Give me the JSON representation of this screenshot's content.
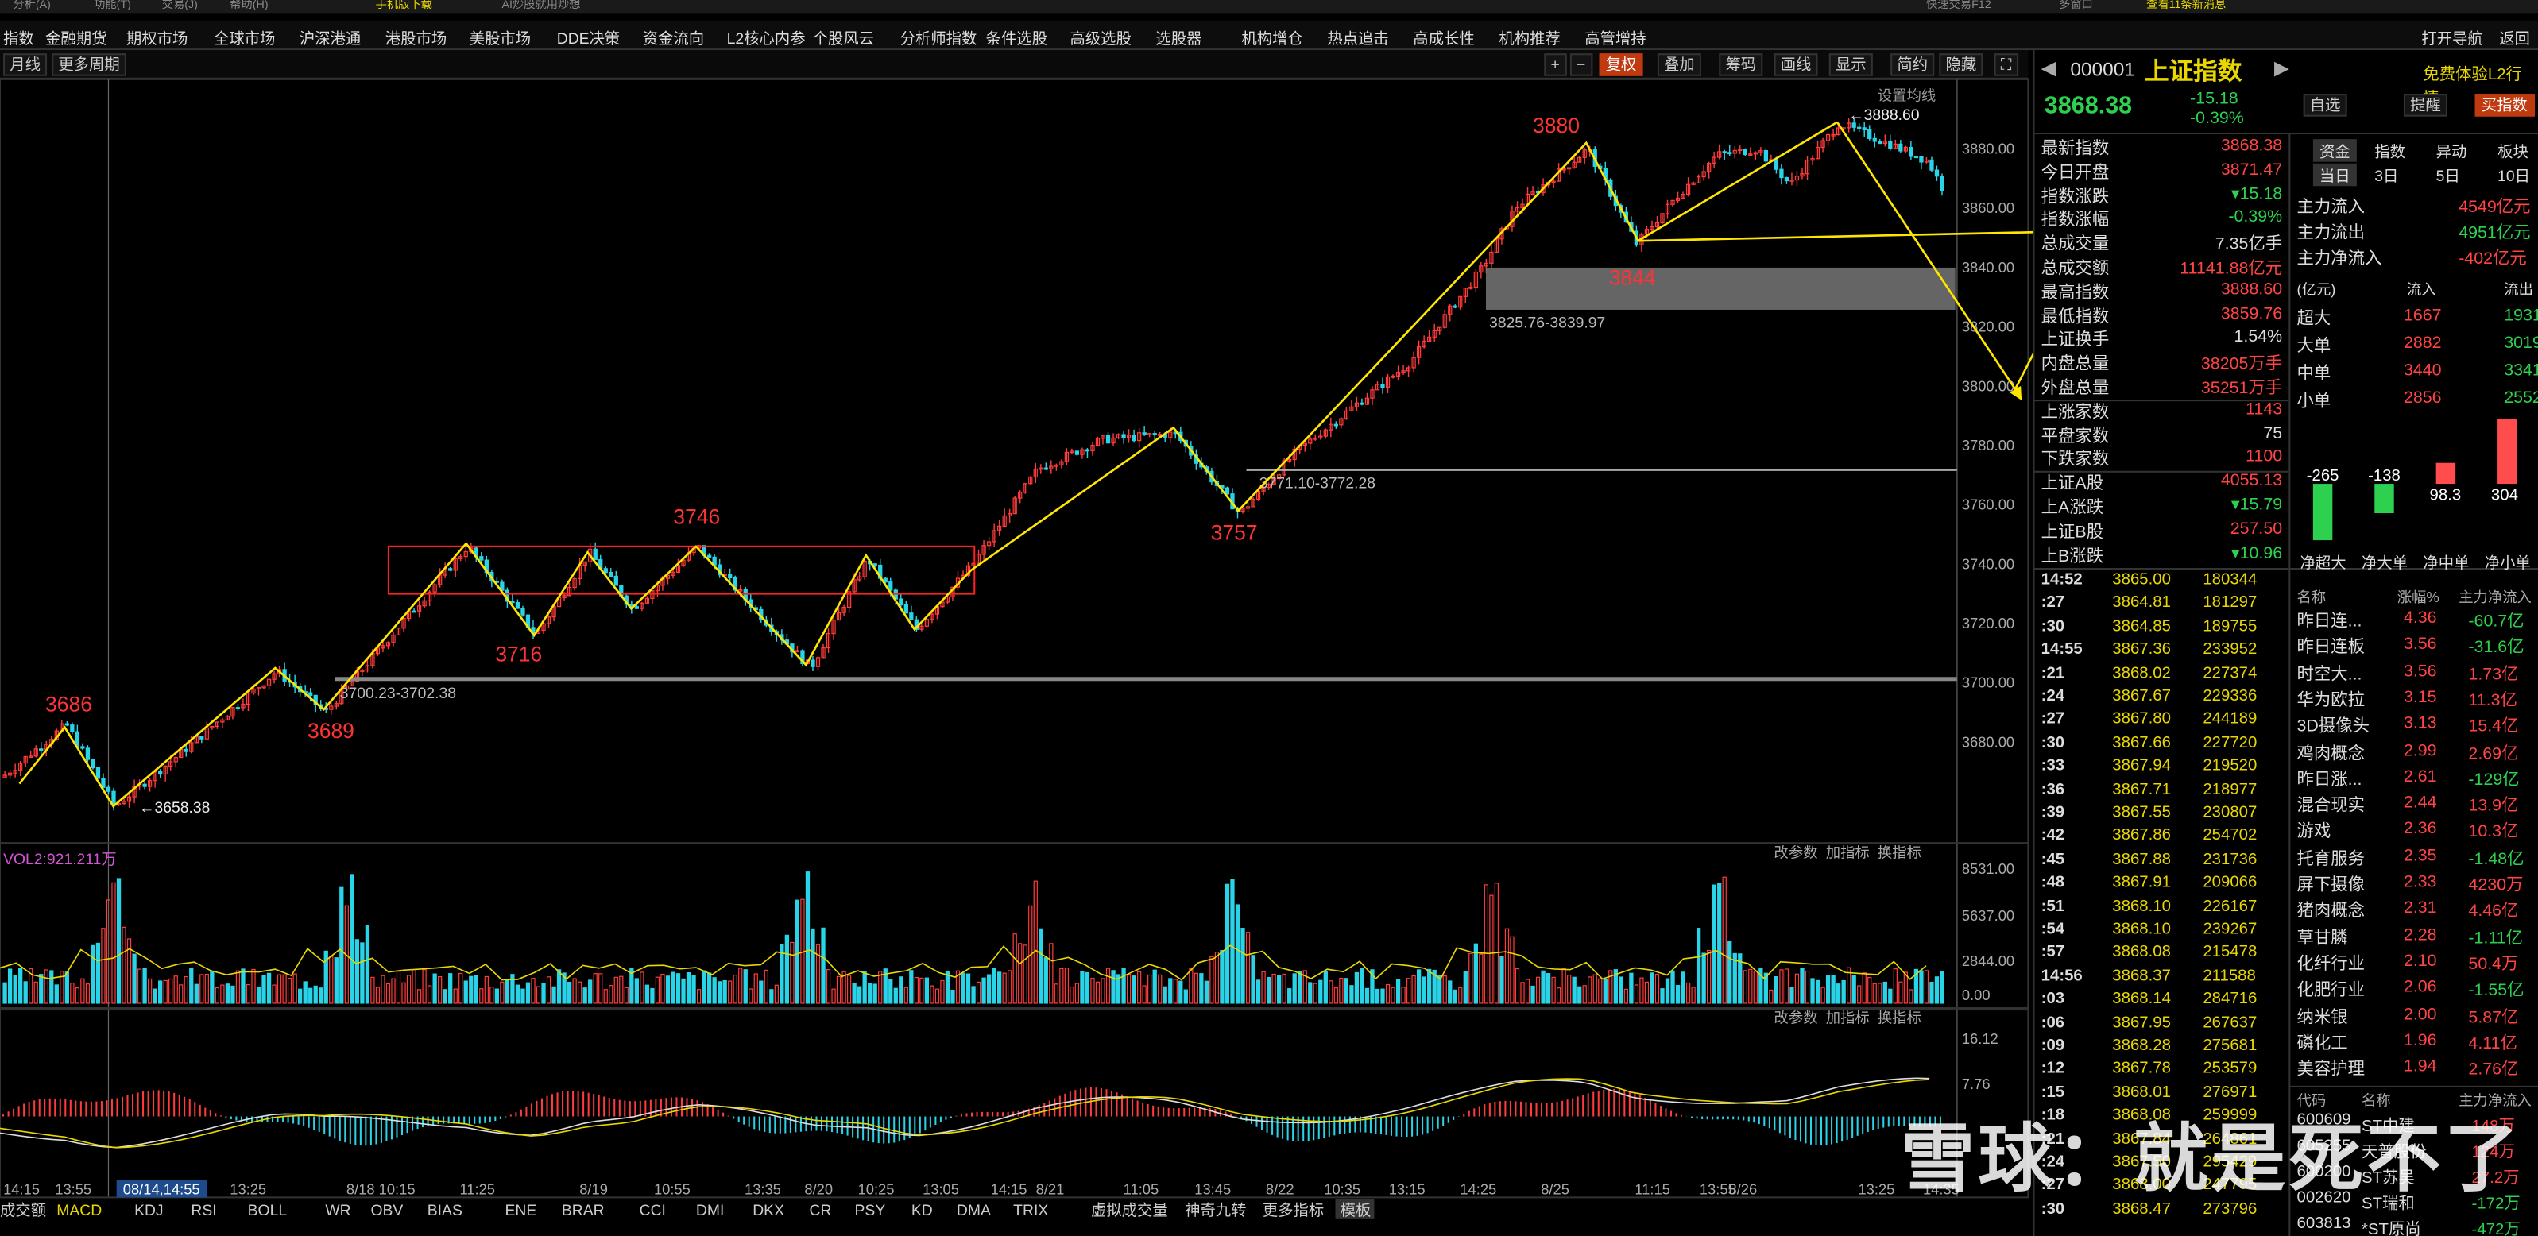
{
  "menu": {
    "items": [
      "分析(A)",
      "功能(T)",
      "交易(J)",
      "帮助(H)",
      "手机版下载",
      "AI炒股就用炒想",
      "快速交易F12",
      "多窗口",
      "查看11条新消息"
    ]
  },
  "nav": [
    "指数",
    "金融期货",
    "期权市场",
    "全球市场",
    "沪深港通",
    "港股市场",
    "美股市场",
    "DDE决策",
    "资金流向",
    "L2核心内参",
    "个股风云",
    "分析师指数",
    "条件选股",
    "高级选股",
    "选股器",
    "机构增仓",
    "热点追击",
    "高成长性",
    "机构推荐",
    "高管增持",
    "打开导航",
    "返回"
  ],
  "toolbar": {
    "left": [
      "月线",
      "更多周期"
    ],
    "right": [
      "+",
      "−",
      "复权",
      "叠加",
      "筹码",
      "画线",
      "显示",
      "简约",
      "隐藏"
    ],
    "settings": "设置均线"
  },
  "chart_data": {
    "type": "candlestick",
    "title": "000001 上证指数",
    "price_ticks": [
      "3880.00",
      "3860.00",
      "3840.00",
      "3820.00",
      "3800.00",
      "3780.00",
      "3760.00",
      "3740.00",
      "3720.00",
      "3700.00",
      "3680.00"
    ],
    "ylim": [
      3652,
      3892
    ],
    "pivots": [
      [
        "3686",
        3686
      ],
      [
        "3658.38",
        3658.38
      ],
      [
        "3689",
        3689
      ],
      [
        "3746",
        3746
      ],
      [
        "3716",
        3716
      ],
      [
        "3757",
        3757
      ],
      [
        "3880",
        3880
      ],
      [
        "3844",
        3844
      ],
      [
        "3888.60",
        3888.6
      ]
    ],
    "zone_labels": [
      "3700.23-3702.38",
      "3771.10-3772.28",
      "3825.76-3839.97"
    ],
    "volume": {
      "label": "VOL2:921.211万",
      "ticks": [
        "8531.00",
        "5637.00",
        "2844.00",
        "0.00"
      ]
    },
    "macd": {
      "ticks": [
        "16.12",
        "7.76"
      ]
    },
    "time_labels": [
      "14:15",
      "13:55",
      "08/14,14:55",
      "13:25",
      "8/18 10:15",
      "11:25",
      "8/19",
      "10:55",
      "13:35",
      "8/20",
      "10:25",
      "13:05",
      "14:15",
      "8/21",
      "11:05",
      "13:45",
      "8/22",
      "10:35",
      "13:15",
      "14:25",
      "8/25",
      "11:15",
      "13:55",
      "8/26",
      "13:25",
      "14:35"
    ],
    "panel_btns": [
      "改参数",
      "加指标",
      "换指标"
    ],
    "indicator_tabs": [
      "成交额",
      "MACD",
      "KDJ",
      "RSI",
      "BOLL",
      "WR",
      "OBV",
      "BIAS",
      "ENE",
      "BRAR",
      "CCI",
      "DMI",
      "DKX",
      "CR",
      "PSY",
      "KD",
      "DMA",
      "TRIX",
      "虚拟成交量",
      "神奇九转",
      "更多指标",
      "模板"
    ]
  },
  "quote": {
    "code": "000001",
    "name": "上证指数",
    "price": "3868.38",
    "chg": "-15.18",
    "pct": "-0.39%",
    "l2": "免费体验L2行情",
    "btns": [
      "自选",
      "提醒",
      "买指数"
    ],
    "rows": [
      [
        "最新指数",
        "3868.38"
      ],
      [
        "今日开盘",
        "3871.47"
      ],
      [
        "指数涨跌",
        "▾15.18"
      ],
      [
        "指数涨幅",
        "-0.39%"
      ],
      [
        "总成交量",
        "7.35亿手"
      ],
      [
        "总成交额",
        "11141.88亿元"
      ],
      [
        "最高指数",
        "3888.60"
      ],
      [
        "最低指数",
        "3859.76"
      ],
      [
        "上证换手",
        "1.54%"
      ],
      [
        "内盘总量",
        "38205万手"
      ],
      [
        "外盘总量",
        "35251万手"
      ],
      [
        "上涨家数",
        "1143"
      ],
      [
        "平盘家数",
        "75"
      ],
      [
        "下跌家数",
        "1100"
      ],
      [
        "上证A股",
        "4055.13"
      ],
      [
        "上A涨跌",
        "▾15.79"
      ],
      [
        "上证B股",
        "257.50"
      ],
      [
        "上B涨跌",
        "▾10.96"
      ]
    ]
  },
  "ticks": [
    [
      "14:52",
      "3865.00",
      "180344"
    ],
    [
      ":27",
      "3864.81",
      "181297"
    ],
    [
      ":30",
      "3864.85",
      "189755"
    ],
    [
      "14:55",
      "3867.36",
      "233952"
    ],
    [
      ":21",
      "3868.02",
      "227374"
    ],
    [
      ":24",
      "3867.67",
      "229336"
    ],
    [
      ":27",
      "3867.80",
      "244189"
    ],
    [
      ":30",
      "3867.66",
      "227720"
    ],
    [
      ":33",
      "3867.94",
      "219520"
    ],
    [
      ":36",
      "3867.71",
      "218977"
    ],
    [
      ":39",
      "3867.55",
      "230807"
    ],
    [
      ":42",
      "3867.86",
      "254702"
    ],
    [
      ":45",
      "3867.88",
      "231736"
    ],
    [
      ":48",
      "3867.91",
      "209066"
    ],
    [
      ":51",
      "3868.10",
      "226167"
    ],
    [
      ":54",
      "3868.10",
      "239267"
    ],
    [
      ":57",
      "3868.08",
      "215478"
    ],
    [
      "14:56",
      "3868.37",
      "211588"
    ],
    [
      ":03",
      "3868.14",
      "284716"
    ],
    [
      ":06",
      "3867.95",
      "267637"
    ],
    [
      ":09",
      "3868.28",
      "275681"
    ],
    [
      ":12",
      "3867.78",
      "253579"
    ],
    [
      ":15",
      "3868.01",
      "276971"
    ],
    [
      ":18",
      "3868.08",
      "259999"
    ],
    [
      ":21",
      "3867.84",
      "264861"
    ],
    [
      ":24",
      "3867.50",
      "295429"
    ],
    [
      ":27",
      "3868.00",
      "247795"
    ],
    [
      ":30",
      "3868.47",
      "273796"
    ]
  ],
  "fund": {
    "tabs": [
      "资金",
      "指数",
      "异动",
      "板块"
    ],
    "periods": [
      "当日",
      "3日",
      "5日",
      "10日"
    ],
    "flow": [
      [
        "主力流入",
        "4549亿元"
      ],
      [
        "主力流出",
        "4951亿元"
      ],
      [
        "主力净流入",
        "-402亿元"
      ]
    ],
    "unit": "(亿元)",
    "in_out": [
      "流入",
      "流出"
    ],
    "size": [
      [
        "超大",
        "1667",
        "1931"
      ],
      [
        "大单",
        "2882",
        "3019"
      ],
      [
        "中单",
        "3440",
        "3341"
      ],
      [
        "小单",
        "2856",
        "2552"
      ]
    ],
    "net_values": [
      -265,
      -138,
      98.3,
      304
    ],
    "net_labels": [
      "-265",
      "-138",
      "98.3",
      "304"
    ],
    "net_names": [
      "净超大",
      "净大单",
      "净中单",
      "净小单"
    ]
  },
  "sector": {
    "headers": [
      "名称",
      "涨幅%",
      "主力净流入"
    ],
    "rows": [
      [
        "昨日连...",
        "4.36",
        "-60.7亿"
      ],
      [
        "昨日连板",
        "3.56",
        "-31.6亿"
      ],
      [
        "时空大...",
        "3.56",
        "1.73亿"
      ],
      [
        "华为欧拉",
        "3.15",
        "11.3亿"
      ],
      [
        "3D摄像头",
        "3.13",
        "15.4亿"
      ],
      [
        "鸡肉概念",
        "2.99",
        "2.69亿"
      ],
      [
        "昨日涨...",
        "2.61",
        "-129亿"
      ],
      [
        "混合现实",
        "2.44",
        "13.9亿"
      ],
      [
        "游戏",
        "2.36",
        "10.3亿"
      ],
      [
        "托育服务",
        "2.35",
        "-1.48亿"
      ],
      [
        "屏下摄像",
        "2.33",
        "4230万"
      ],
      [
        "猪肉概念",
        "2.31",
        "4.46亿"
      ],
      [
        "草甘膦",
        "2.28",
        "-1.11亿"
      ],
      [
        "化纤行业",
        "2.10",
        "50.4万"
      ],
      [
        "化肥行业",
        "2.06",
        "-1.55亿"
      ],
      [
        "纳米银",
        "2.00",
        "5.87亿"
      ],
      [
        "磷化工",
        "1.96",
        "4.11亿"
      ],
      [
        "美容护理",
        "1.94",
        "2.76亿"
      ]
    ]
  },
  "stocks": {
    "headers": [
      "代码",
      "名称",
      "主力净流入"
    ],
    "rows": [
      [
        "600609",
        "ST中建",
        "148万"
      ],
      [
        "605255",
        "天普股份",
        "124万"
      ],
      [
        "600200",
        "ST苏吴",
        "27.2万"
      ],
      [
        "002620",
        "ST瑞和",
        "-172万"
      ],
      [
        "603813",
        "*ST原尚",
        "-472万"
      ]
    ]
  },
  "watermark": "雪球：就是死不了"
}
